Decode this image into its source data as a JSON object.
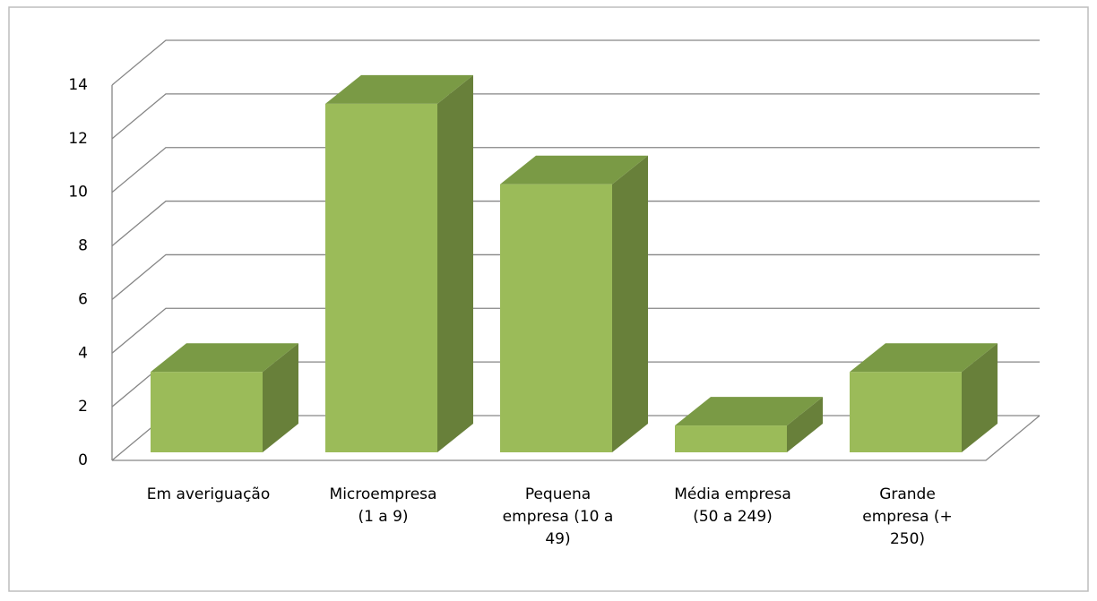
{
  "chart_data": {
    "type": "bar3d",
    "categories": [
      "Em averiguação",
      "Microempresa\n(1 a 9)",
      "Pequena\nempresa (10 a\n49)",
      "Média empresa\n(50 a 249)",
      "Grande\nempresa (+\n250)"
    ],
    "values": [
      3,
      13,
      10,
      1,
      3
    ],
    "color": "#9bbb59",
    "ylim": [
      0,
      14
    ],
    "yticks": [
      0,
      2,
      4,
      6,
      8,
      10,
      12,
      14
    ],
    "grid": true
  }
}
